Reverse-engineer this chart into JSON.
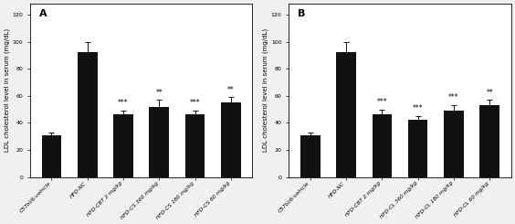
{
  "panel_A": {
    "label": "A",
    "categories": [
      "C57bl/6-vehicle",
      "HFD-NC",
      "HFD-CBT 2 mg/kg",
      "HFD-CS 360 mg/kg",
      "HFD-CS 180 mg/kg",
      "HFD-CS 60 mg/kg"
    ],
    "values": [
      31,
      92,
      46,
      52,
      46,
      55
    ],
    "errors": [
      2,
      8,
      3,
      5,
      3,
      4
    ],
    "sig_labels": [
      "",
      "",
      "***",
      "**",
      "***",
      "**"
    ]
  },
  "panel_B": {
    "label": "B",
    "categories": [
      "C57bl/6-vehicle",
      "HFD-NC",
      "HFD-CBT 2 mg/kg",
      "HFD-CL 360 mg/kg",
      "HFD-CL 180 mg/kg",
      "HFD-CL 60 mg/kg"
    ],
    "values": [
      31,
      92,
      46,
      42,
      49,
      53
    ],
    "errors": [
      2,
      8,
      4,
      3,
      4,
      4
    ],
    "sig_labels": [
      "",
      "",
      "***",
      "***",
      "***",
      "**"
    ]
  },
  "ylabel": "LDL cholesterol level in serum (mg/dL)",
  "ylim": [
    0,
    128
  ],
  "yticks": [
    0,
    20,
    40,
    60,
    80,
    100,
    120
  ],
  "bar_color": "#111111",
  "error_color": "#111111",
  "background_color": "#f0f0f0",
  "plot_bg_color": "#ffffff",
  "sig_fontsize": 5.5,
  "ylabel_fontsize": 5.0,
  "tick_fontsize": 4.5,
  "xtick_fontsize": 4.2,
  "label_fontsize": 8,
  "bar_width": 0.55
}
